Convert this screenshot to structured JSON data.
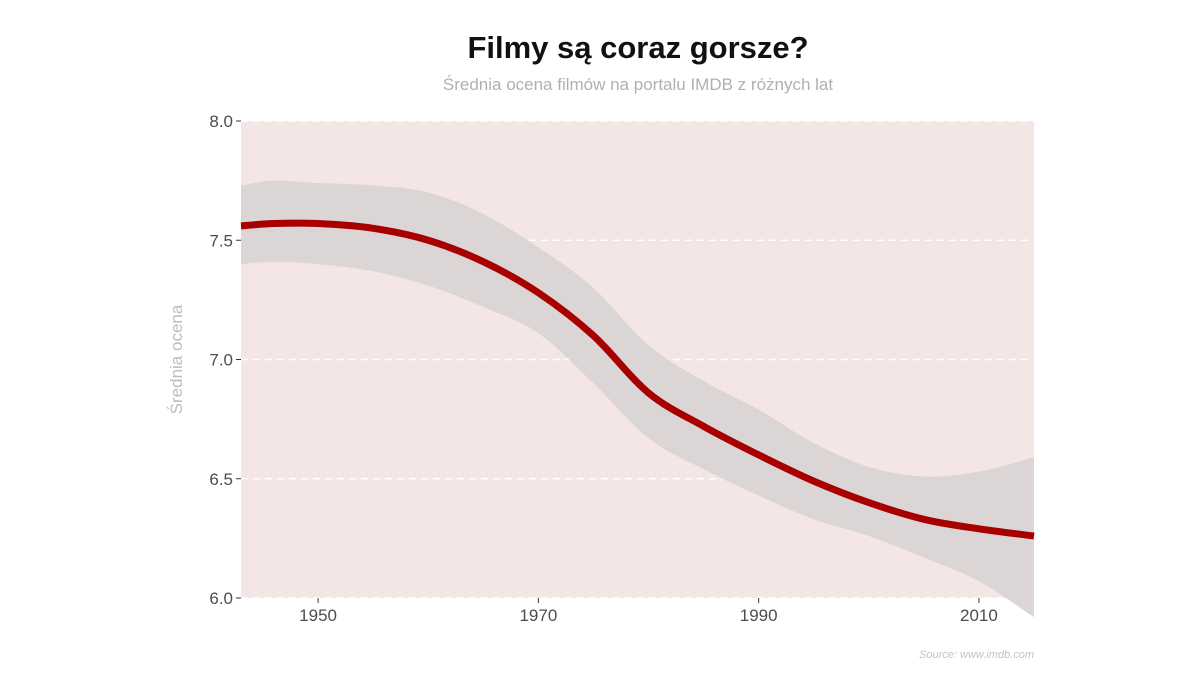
{
  "chart_data": {
    "type": "line",
    "title": "Filmy są coraz gorsze?",
    "subtitle": "Średnia ocena filmów na portalu IMDB z różnych lat",
    "xlabel": "",
    "ylabel": "Średnia ocena",
    "source": "Source: www.imdb.com",
    "xlim": [
      1943,
      2015
    ],
    "ylim": [
      6.0,
      8.0
    ],
    "x_ticks": [
      1950,
      1970,
      1990,
      2010
    ],
    "y_ticks": [
      6.0,
      6.5,
      7.0,
      7.5,
      8.0
    ],
    "y_tick_labels": [
      "6.0",
      "6.5",
      "7.0",
      "7.5",
      "8.0"
    ],
    "grid": "horizontal dashed",
    "series": [
      {
        "type": "smooth-trend-with-confidence-band",
        "x": [
          1943,
          1946,
          1950,
          1955,
          1960,
          1965,
          1970,
          1975,
          1980,
          1985,
          1990,
          1995,
          2000,
          2005,
          2010,
          2015
        ],
        "y": [
          7.56,
          7.57,
          7.57,
          7.55,
          7.5,
          7.41,
          7.28,
          7.1,
          6.86,
          6.72,
          6.6,
          6.49,
          6.4,
          6.33,
          6.29,
          6.26
        ],
        "lower": [
          7.4,
          7.41,
          7.4,
          7.37,
          7.31,
          7.22,
          7.11,
          6.9,
          6.67,
          6.54,
          6.43,
          6.33,
          6.26,
          6.17,
          6.07,
          5.92
        ],
        "upper": [
          7.73,
          7.75,
          7.74,
          7.73,
          7.7,
          7.61,
          7.47,
          7.3,
          7.06,
          6.91,
          6.79,
          6.65,
          6.55,
          6.51,
          6.53,
          6.59
        ]
      }
    ],
    "colors": {
      "panel_background": "#f4e6e4",
      "grid": "#ffffff",
      "confidence_band": "#dcd5d5",
      "trend_line": "#a80000",
      "axis_text": "#4d4d4d",
      "ylabel_text": "#bdbdbd",
      "subtitle_text": "#b0b0b0",
      "title_text": "#111111"
    }
  }
}
